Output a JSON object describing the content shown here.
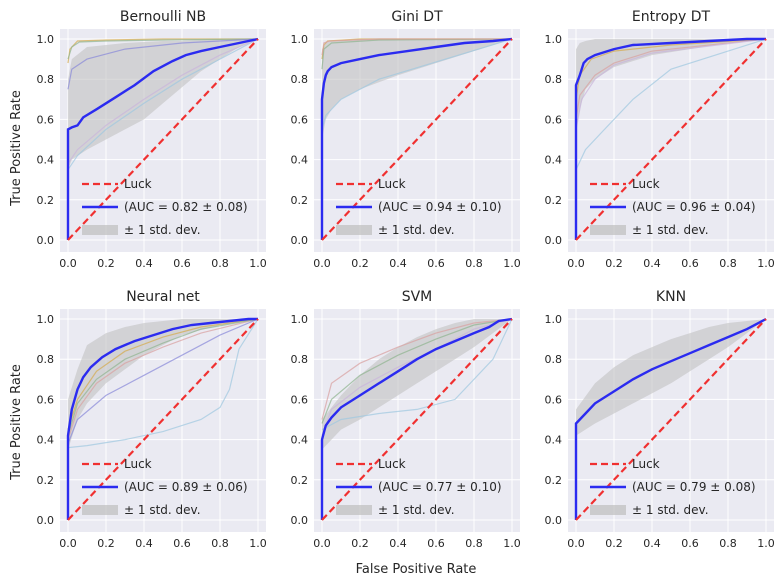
{
  "figure": {
    "ylabel": "True Positive Rate",
    "xlabel": "False Positive Rate",
    "legend": {
      "luck": "Luck",
      "band": "± 1 std. dev."
    },
    "ticks": [
      "0.0",
      "0.2",
      "0.4",
      "0.6",
      "0.8",
      "1.0"
    ]
  },
  "colors": {
    "panel_bg": "#EAEAF2",
    "grid": "#FFFFFF",
    "mean_line": "#2B2BF0",
    "luck_line": "#F03030",
    "band": "#BEBEBE"
  },
  "chart_data": [
    {
      "type": "line",
      "title": "Bernoulli NB",
      "xlim": [
        0,
        1
      ],
      "ylim": [
        0,
        1
      ],
      "auc_label": "(AUC = 0.82 ± 0.08)",
      "series": [
        {
          "name": "(AUC = 0.82 ± 0.08)",
          "role": "mean",
          "x": [
            0,
            0.0,
            0.02,
            0.05,
            0.08,
            0.15,
            0.25,
            0.35,
            0.45,
            0.55,
            0.62,
            0.7,
            0.8,
            0.9,
            0.95,
            1.0
          ],
          "y": [
            0,
            0.55,
            0.56,
            0.57,
            0.61,
            0.65,
            0.71,
            0.77,
            0.84,
            0.89,
            0.92,
            0.94,
            0.96,
            0.98,
            0.99,
            1.0
          ]
        },
        {
          "name": "Luck",
          "role": "luck",
          "x": [
            0,
            1
          ],
          "y": [
            0,
            1
          ]
        }
      ],
      "band": {
        "x": [
          0,
          0.02,
          0.1,
          0.2,
          0.3,
          0.4,
          0.5,
          0.6,
          0.7,
          0.8,
          0.9,
          1.0
        ],
        "upper": [
          0.8,
          0.9,
          0.96,
          0.97,
          0.98,
          0.985,
          0.99,
          0.99,
          0.995,
          1.0,
          1.0,
          1.0
        ],
        "lower": [
          0.35,
          0.4,
          0.45,
          0.5,
          0.55,
          0.6,
          0.68,
          0.76,
          0.84,
          0.9,
          0.96,
          1.0
        ]
      },
      "folds": [
        {
          "x": [
            0,
            0.01,
            0.05,
            0.2,
            0.5,
            1.0
          ],
          "y": [
            0.88,
            0.95,
            0.99,
            0.995,
            1.0,
            1.0
          ],
          "color": "#d4a94a"
        },
        {
          "x": [
            0,
            0.02,
            0.06,
            0.2,
            0.5,
            1.0
          ],
          "y": [
            0.9,
            0.96,
            0.985,
            0.99,
            0.995,
            1.0
          ],
          "color": "#8fb38f"
        },
        {
          "x": [
            0,
            0.02,
            0.1,
            0.3,
            0.6,
            1.0
          ],
          "y": [
            0.75,
            0.85,
            0.9,
            0.95,
            0.98,
            1.0
          ],
          "color": "#8888d8"
        },
        {
          "x": [
            0,
            0.05,
            0.2,
            0.4,
            0.6,
            0.8,
            1.0
          ],
          "y": [
            0.35,
            0.42,
            0.55,
            0.68,
            0.8,
            0.9,
            1.0
          ],
          "color": "#9ec7df"
        },
        {
          "x": [
            0,
            0.05,
            0.2,
            0.4,
            0.6,
            0.8,
            1.0
          ],
          "y": [
            0.38,
            0.45,
            0.57,
            0.7,
            0.82,
            0.92,
            1.0
          ],
          "color": "#c9b4dc"
        }
      ]
    },
    {
      "type": "line",
      "title": "Gini DT",
      "xlim": [
        0,
        1
      ],
      "ylim": [
        0,
        1
      ],
      "auc_label": "(AUC = 0.94 ± 0.10)",
      "series": [
        {
          "name": "(AUC = 0.94 ± 0.10)",
          "role": "mean",
          "x": [
            0,
            0.0,
            0.01,
            0.02,
            0.03,
            0.05,
            0.1,
            0.2,
            0.3,
            0.45,
            0.6,
            0.75,
            0.9,
            1.0
          ],
          "y": [
            0,
            0.7,
            0.78,
            0.82,
            0.84,
            0.86,
            0.88,
            0.9,
            0.92,
            0.94,
            0.96,
            0.98,
            0.99,
            1.0
          ]
        },
        {
          "name": "Luck",
          "role": "luck",
          "x": [
            0,
            1
          ],
          "y": [
            0,
            1
          ]
        }
      ],
      "band": {
        "x": [
          0,
          0.02,
          0.05,
          0.1,
          0.2,
          0.4,
          0.6,
          0.8,
          1.0
        ],
        "upper": [
          0.95,
          0.98,
          0.99,
          0.995,
          1.0,
          1.0,
          1.0,
          1.0,
          1.0
        ],
        "lower": [
          0.5,
          0.6,
          0.65,
          0.7,
          0.75,
          0.82,
          0.88,
          0.94,
          1.0
        ]
      },
      "folds": [
        {
          "x": [
            0,
            0.01,
            0.03,
            0.2,
            1.0
          ],
          "y": [
            0.9,
            0.97,
            0.99,
            1.0,
            1.0
          ],
          "color": "#d4a94a"
        },
        {
          "x": [
            0,
            0.01,
            0.05,
            0.3,
            1.0
          ],
          "y": [
            0.85,
            0.95,
            0.98,
            0.995,
            1.0
          ],
          "color": "#8fb38f"
        },
        {
          "x": [
            0,
            0.01,
            0.04,
            0.3,
            1.0
          ],
          "y": [
            0.92,
            0.98,
            0.99,
            1.0,
            1.0
          ],
          "color": "#d8a0a0"
        },
        {
          "x": [
            0,
            0.02,
            0.1,
            0.3,
            1.0
          ],
          "y": [
            0.55,
            0.62,
            0.7,
            0.8,
            1.0
          ],
          "color": "#9ec7df"
        }
      ]
    },
    {
      "type": "line",
      "title": "Entropy DT",
      "xlim": [
        0,
        1
      ],
      "ylim": [
        0,
        1
      ],
      "auc_label": "(AUC = 0.96 ± 0.04)",
      "series": [
        {
          "name": "(AUC = 0.96 ± 0.04)",
          "role": "mean",
          "x": [
            0,
            0.0,
            0.02,
            0.04,
            0.06,
            0.1,
            0.2,
            0.3,
            0.5,
            0.7,
            0.9,
            1.0
          ],
          "y": [
            0,
            0.77,
            0.82,
            0.88,
            0.9,
            0.92,
            0.95,
            0.97,
            0.98,
            0.99,
            1.0,
            1.0
          ]
        },
        {
          "name": "Luck",
          "role": "luck",
          "x": [
            0,
            1
          ],
          "y": [
            0,
            1
          ]
        }
      ],
      "band": {
        "x": [
          0,
          0.02,
          0.05,
          0.1,
          0.2,
          0.4,
          0.6,
          0.8,
          1.0
        ],
        "upper": [
          0.95,
          0.98,
          0.99,
          1.0,
          1.0,
          1.0,
          1.0,
          1.0,
          1.0
        ],
        "lower": [
          0.55,
          0.65,
          0.75,
          0.8,
          0.86,
          0.92,
          0.95,
          0.98,
          1.0
        ]
      },
      "folds": [
        {
          "x": [
            0,
            0.05,
            0.15,
            0.3,
            0.5,
            1.0
          ],
          "y": [
            0.35,
            0.45,
            0.55,
            0.7,
            0.85,
            1.0
          ],
          "color": "#9ec7df"
        },
        {
          "x": [
            0,
            0.02,
            0.1,
            0.2,
            0.4,
            1.0
          ],
          "y": [
            0.6,
            0.72,
            0.82,
            0.88,
            0.94,
            1.0
          ],
          "color": "#d8a0a0"
        },
        {
          "x": [
            0,
            0.03,
            0.1,
            0.2,
            0.4,
            1.0
          ],
          "y": [
            0.55,
            0.7,
            0.8,
            0.87,
            0.93,
            1.0
          ],
          "color": "#c9b4dc"
        },
        {
          "x": [
            0,
            0.02,
            0.08,
            0.2,
            0.5,
            1.0
          ],
          "y": [
            0.7,
            0.82,
            0.9,
            0.94,
            0.97,
            1.0
          ],
          "color": "#d4a94a"
        }
      ]
    },
    {
      "type": "line",
      "title": "Neural net",
      "xlim": [
        0,
        1
      ],
      "ylim": [
        0,
        1
      ],
      "auc_label": "(AUC = 0.89 ± 0.06)",
      "series": [
        {
          "name": "(AUC = 0.89 ± 0.06)",
          "role": "mean",
          "x": [
            0,
            0.0,
            0.02,
            0.05,
            0.08,
            0.12,
            0.18,
            0.25,
            0.35,
            0.45,
            0.55,
            0.65,
            0.75,
            0.85,
            0.95,
            1.0
          ],
          "y": [
            0,
            0.42,
            0.55,
            0.65,
            0.71,
            0.76,
            0.81,
            0.85,
            0.89,
            0.92,
            0.95,
            0.97,
            0.98,
            0.99,
            1.0,
            1.0
          ]
        },
        {
          "name": "Luck",
          "role": "luck",
          "x": [
            0,
            1
          ],
          "y": [
            0,
            1
          ]
        }
      ],
      "band": {
        "x": [
          0,
          0.05,
          0.1,
          0.2,
          0.3,
          0.4,
          0.5,
          0.6,
          0.8,
          1.0
        ],
        "upper": [
          0.6,
          0.75,
          0.87,
          0.93,
          0.96,
          0.98,
          0.99,
          1.0,
          1.0,
          1.0
        ],
        "lower": [
          0.35,
          0.5,
          0.58,
          0.68,
          0.75,
          0.82,
          0.87,
          0.92,
          0.97,
          1.0
        ]
      },
      "folds": [
        {
          "x": [
            0,
            0.1,
            0.3,
            0.5,
            0.7,
            0.8,
            0.85,
            0.9,
            1.0
          ],
          "y": [
            0.36,
            0.37,
            0.4,
            0.44,
            0.5,
            0.56,
            0.65,
            0.85,
            1.0
          ],
          "color": "#9ec7df"
        },
        {
          "x": [
            0,
            0.05,
            0.15,
            0.3,
            0.5,
            0.7,
            1.0
          ],
          "y": [
            0.4,
            0.55,
            0.68,
            0.78,
            0.86,
            0.93,
            1.0
          ],
          "color": "#d8a0a0"
        },
        {
          "x": [
            0,
            0.05,
            0.2,
            0.4,
            0.6,
            0.8,
            1.0
          ],
          "y": [
            0.38,
            0.5,
            0.62,
            0.72,
            0.82,
            0.92,
            1.0
          ],
          "color": "#8888d8"
        },
        {
          "x": [
            0,
            0.05,
            0.15,
            0.3,
            0.5,
            0.7,
            1.0
          ],
          "y": [
            0.45,
            0.6,
            0.74,
            0.84,
            0.91,
            0.96,
            1.0
          ],
          "color": "#d4a94a"
        },
        {
          "x": [
            0,
            0.05,
            0.15,
            0.3,
            0.5,
            0.7,
            1.0
          ],
          "y": [
            0.42,
            0.58,
            0.7,
            0.8,
            0.88,
            0.95,
            1.0
          ],
          "color": "#8fb38f"
        }
      ]
    },
    {
      "type": "line",
      "title": "SVM",
      "xlim": [
        0,
        1
      ],
      "ylim": [
        0,
        1
      ],
      "auc_label": "(AUC = 0.77 ± 0.10)",
      "series": [
        {
          "name": "(AUC = 0.77 ± 0.10)",
          "role": "mean",
          "x": [
            0,
            0.0,
            0.02,
            0.05,
            0.1,
            0.2,
            0.3,
            0.4,
            0.5,
            0.6,
            0.7,
            0.8,
            0.88,
            0.93,
            1.0
          ],
          "y": [
            0,
            0.4,
            0.47,
            0.51,
            0.56,
            0.62,
            0.68,
            0.74,
            0.8,
            0.85,
            0.89,
            0.93,
            0.96,
            0.99,
            1.0
          ]
        },
        {
          "name": "Luck",
          "role": "luck",
          "x": [
            0,
            1
          ],
          "y": [
            0,
            1
          ]
        }
      ],
      "band": {
        "x": [
          0,
          0.1,
          0.2,
          0.3,
          0.4,
          0.5,
          0.6,
          0.7,
          0.8,
          0.9,
          1.0
        ],
        "upper": [
          0.5,
          0.62,
          0.72,
          0.8,
          0.86,
          0.91,
          0.95,
          0.98,
          1.0,
          1.0,
          1.0
        ],
        "lower": [
          0.35,
          0.45,
          0.5,
          0.56,
          0.62,
          0.68,
          0.74,
          0.8,
          0.86,
          0.93,
          1.0
        ]
      },
      "folds": [
        {
          "x": [
            0,
            0.1,
            0.3,
            0.5,
            0.7,
            0.9,
            1.0
          ],
          "y": [
            0.45,
            0.5,
            0.53,
            0.55,
            0.6,
            0.8,
            1.0
          ],
          "color": "#9ec7df"
        },
        {
          "x": [
            0,
            0.05,
            0.2,
            0.4,
            0.6,
            0.8,
            1.0
          ],
          "y": [
            0.5,
            0.68,
            0.78,
            0.86,
            0.93,
            0.98,
            1.0
          ],
          "color": "#d8a0a0"
        },
        {
          "x": [
            0,
            0.05,
            0.2,
            0.4,
            0.6,
            0.8,
            1.0
          ],
          "y": [
            0.48,
            0.6,
            0.72,
            0.82,
            0.9,
            0.97,
            1.0
          ],
          "color": "#8fb38f"
        },
        {
          "x": [
            0,
            0.05,
            0.2,
            0.4,
            0.6,
            0.8,
            1.0
          ],
          "y": [
            0.42,
            0.55,
            0.66,
            0.76,
            0.85,
            0.95,
            1.0
          ],
          "color": "#c9b4dc"
        }
      ]
    },
    {
      "type": "line",
      "title": "KNN",
      "xlim": [
        0,
        1
      ],
      "ylim": [
        0,
        1
      ],
      "auc_label": "(AUC = 0.79 ± 0.08)",
      "series": [
        {
          "name": "(AUC = 0.79 ± 0.08)",
          "role": "mean",
          "x": [
            0,
            0.0,
            0.02,
            0.05,
            0.1,
            0.2,
            0.3,
            0.4,
            0.5,
            0.6,
            0.7,
            0.8,
            0.9,
            1.0
          ],
          "y": [
            0,
            0.48,
            0.5,
            0.53,
            0.58,
            0.64,
            0.7,
            0.75,
            0.79,
            0.83,
            0.87,
            0.91,
            0.95,
            1.0
          ]
        },
        {
          "name": "Luck",
          "role": "luck",
          "x": [
            0,
            1
          ],
          "y": [
            0,
            1
          ]
        }
      ],
      "band": {
        "x": [
          0,
          0.1,
          0.2,
          0.3,
          0.4,
          0.5,
          0.6,
          0.7,
          0.8,
          0.9,
          1.0
        ],
        "upper": [
          0.55,
          0.68,
          0.76,
          0.82,
          0.86,
          0.9,
          0.93,
          0.96,
          0.98,
          0.99,
          1.0
        ],
        "lower": [
          0.42,
          0.48,
          0.53,
          0.58,
          0.63,
          0.68,
          0.74,
          0.8,
          0.86,
          0.93,
          1.0
        ]
      },
      "folds": []
    }
  ]
}
